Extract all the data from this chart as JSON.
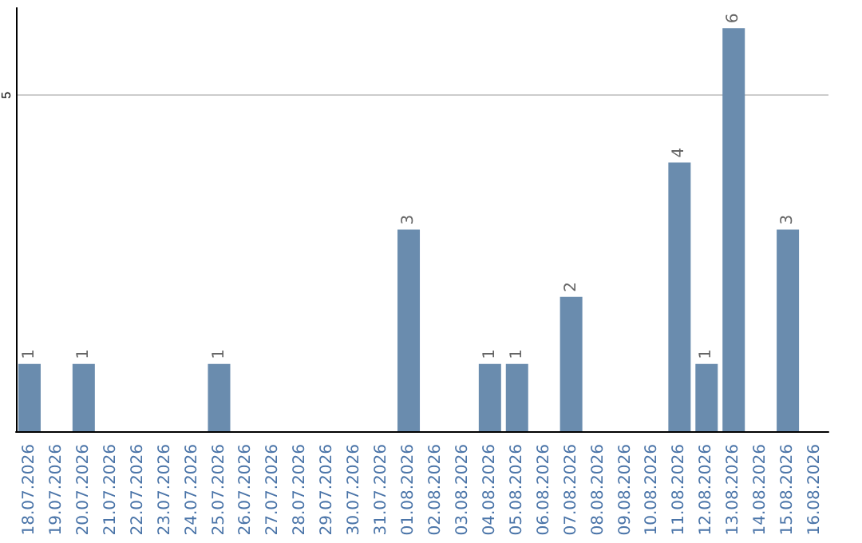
{
  "chart_data": {
    "type": "bar",
    "categories": [
      "18.07.2026",
      "19.07.2026",
      "20.07.2026",
      "21.07.2026",
      "22.07.2026",
      "23.07.2026",
      "24.07.2026",
      "25.07.2026",
      "26.07.2026",
      "27.07.2026",
      "28.07.2026",
      "29.07.2026",
      "30.07.2026",
      "31.07.2026",
      "01.08.2026",
      "02.08.2026",
      "03.08.2026",
      "04.08.2026",
      "05.08.2026",
      "06.08.2026",
      "07.08.2026",
      "08.08.2026",
      "09.08.2026",
      "10.08.2026",
      "11.08.2026",
      "12.08.2026",
      "13.08.2026",
      "14.08.2026",
      "15.08.2026",
      "16.08.2026"
    ],
    "values": [
      1,
      null,
      1,
      null,
      null,
      null,
      null,
      1,
      null,
      null,
      null,
      null,
      null,
      null,
      3,
      null,
      null,
      1,
      1,
      null,
      2,
      null,
      null,
      null,
      4,
      1,
      6,
      null,
      3,
      null
    ],
    "color": "#6a8cae",
    "ylim": [
      0,
      6.3
    ],
    "yticks": [
      5
    ],
    "grid": "y",
    "data_labels": true
  }
}
